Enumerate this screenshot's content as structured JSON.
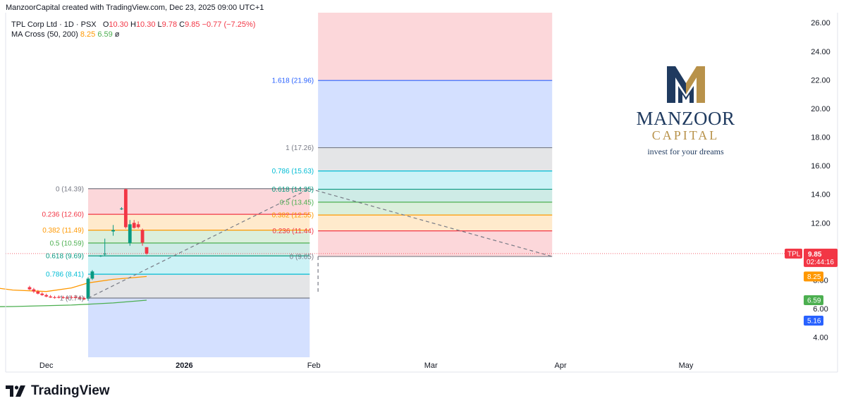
{
  "header": {
    "caption": "ManzoorCapital created with TradingView.com, Dec 23, 2025 09:00 UTC+1"
  },
  "legend": {
    "symbol": "TPL Corp Ltd · 1D · PSX",
    "open_label": "O",
    "open": "10.30",
    "high_label": "H",
    "high": "10.30",
    "low_label": "L",
    "low": "9.78",
    "close_label": "C",
    "close": "9.85",
    "change": "−0.77 (−7.25%)",
    "indicator": "MA Cross (50, 200)",
    "ma_fast": "8.25",
    "ma_slow": "6.59",
    "indicator_flag": "ø"
  },
  "watermark": {
    "name": "MANZOOR",
    "sub": "CAPITAL",
    "tagline": "invest for your dreams"
  },
  "branding": {
    "logo_text": "TradingView"
  },
  "colors": {
    "up": "#089981",
    "down": "#f23645",
    "ma_fast": "#ff9800",
    "ma_slow": "#4caf50",
    "badge_blue": "#2962ff",
    "brand_navy": "#1f3a5f",
    "brand_gold": "#b8924a"
  },
  "chart_data": {
    "type": "candlestick",
    "symbol": "TPL",
    "y_range": [
      2.6,
      26.7
    ],
    "y_ticks": [
      "4.00",
      "6.00",
      "8.00",
      "10.00",
      "12.00",
      "14.00",
      "16.00",
      "18.00",
      "20.00",
      "22.00",
      "24.00",
      "26.00"
    ],
    "x_ticks": [
      {
        "label": "Dec",
        "day": -24
      },
      {
        "label": "2026",
        "day": 9
      },
      {
        "label": "Feb",
        "day": 40
      },
      {
        "label": "Mar",
        "day": 68
      },
      {
        "label": "Apr",
        "day": 99
      },
      {
        "label": "May",
        "day": 129
      }
    ],
    "candles": [
      {
        "day": -28,
        "o": 7.5,
        "h": 7.6,
        "l": 7.3,
        "c": 7.35
      },
      {
        "day": -27,
        "o": 7.35,
        "h": 7.45,
        "l": 7.1,
        "c": 7.2
      },
      {
        "day": -26,
        "o": 7.2,
        "h": 7.3,
        "l": 7.0,
        "c": 7.05
      },
      {
        "day": -25,
        "o": 7.05,
        "h": 7.15,
        "l": 6.9,
        "c": 6.95
      },
      {
        "day": -24,
        "o": 6.95,
        "h": 7.05,
        "l": 6.8,
        "c": 6.85
      },
      {
        "day": -23,
        "o": 6.85,
        "h": 6.95,
        "l": 6.75,
        "c": 6.78
      },
      {
        "day": -22,
        "o": 6.8,
        "h": 6.9,
        "l": 6.7,
        "c": 6.75
      },
      {
        "day": -21,
        "o": 6.82,
        "h": 6.92,
        "l": 6.72,
        "c": 6.76
      },
      {
        "day": -20,
        "o": 6.8,
        "h": 6.9,
        "l": 6.7,
        "c": 6.74
      },
      {
        "day": -19,
        "o": 6.78,
        "h": 6.88,
        "l": 6.68,
        "c": 6.72
      },
      {
        "day": -18,
        "o": 6.8,
        "h": 6.92,
        "l": 6.7,
        "c": 6.75
      },
      {
        "day": -17,
        "o": 6.82,
        "h": 6.95,
        "l": 6.72,
        "c": 6.74
      },
      {
        "day": -16,
        "o": 6.8,
        "h": 6.9,
        "l": 6.65,
        "c": 6.7
      },
      {
        "day": -15,
        "o": 6.75,
        "h": 6.85,
        "l": 6.6,
        "c": 6.65
      },
      {
        "day": -14,
        "o": 6.7,
        "h": 8.2,
        "l": 6.55,
        "c": 8.1
      },
      {
        "day": -13,
        "o": 8.1,
        "h": 8.7,
        "l": 8.0,
        "c": 8.6
      },
      {
        "day": -11,
        "o": 9.68,
        "h": 9.74,
        "l": 9.62,
        "c": 9.7
      },
      {
        "day": -10,
        "o": 9.8,
        "h": 10.9,
        "l": 9.7,
        "c": 9.85
      },
      {
        "day": -8,
        "o": 11.4,
        "h": 11.85,
        "l": 11.1,
        "c": 11.5
      },
      {
        "day": -6,
        "o": 13.0,
        "h": 13.1,
        "l": 12.9,
        "c": 13.0
      },
      {
        "day": -5,
        "o": 14.35,
        "h": 14.39,
        "l": 11.6,
        "c": 11.7
      },
      {
        "day": -4,
        "o": 10.6,
        "h": 12.2,
        "l": 10.4,
        "c": 11.9
      },
      {
        "day": -3,
        "o": 12.0,
        "h": 12.2,
        "l": 11.6,
        "c": 11.65
      },
      {
        "day": -2,
        "o": 11.9,
        "h": 12.1,
        "l": 11.6,
        "c": 11.7
      },
      {
        "day": -1,
        "o": 11.5,
        "h": 11.6,
        "l": 10.4,
        "c": 10.62
      },
      {
        "day": 0,
        "o": 10.3,
        "h": 10.3,
        "l": 9.78,
        "c": 9.85
      }
    ],
    "ma_fast": {
      "name": "MA 50",
      "points": [
        [
          -48,
          8.0
        ],
        [
          -40,
          7.6
        ],
        [
          -32,
          7.3
        ],
        [
          -24,
          7.2
        ],
        [
          -18,
          7.45
        ],
        [
          -14,
          7.8
        ],
        [
          -8,
          8.05
        ],
        [
          0,
          8.25
        ]
      ]
    },
    "ma_slow": {
      "name": "MA 200",
      "points": [
        [
          -48,
          6.1
        ],
        [
          -32,
          6.15
        ],
        [
          -18,
          6.25
        ],
        [
          -8,
          6.4
        ],
        [
          0,
          6.59
        ]
      ]
    },
    "fib_retracement": {
      "start_day": -14,
      "end_day": 39,
      "anchor_low": 6.74,
      "anchor_high": 14.39,
      "levels": [
        {
          "label": "0 (14.39)",
          "value": 14.39,
          "color": "#787b86"
        },
        {
          "label": "0.236 (12.60)",
          "value": 12.6,
          "color": "#f23645"
        },
        {
          "label": "0.382 (11.49)",
          "value": 11.49,
          "color": "#ff9800"
        },
        {
          "label": "0.5 (10.59)",
          "value": 10.59,
          "color": "#4caf50"
        },
        {
          "label": "0.618 (9.69)",
          "value": 9.69,
          "color": "#089981"
        },
        {
          "label": "0.786 (8.41)",
          "value": 8.41,
          "color": "#00bcd4"
        },
        {
          "label": "1 (6.74)",
          "value": 6.74,
          "color": "#787b86"
        }
      ],
      "zones": [
        {
          "from": 14.39,
          "to": 12.6,
          "fill": "#f23645",
          "opacity": 0.2
        },
        {
          "from": 12.6,
          "to": 11.49,
          "fill": "#ff9800",
          "opacity": 0.2
        },
        {
          "from": 11.49,
          "to": 10.59,
          "fill": "#4caf50",
          "opacity": 0.2
        },
        {
          "from": 10.59,
          "to": 9.69,
          "fill": "#089981",
          "opacity": 0.2
        },
        {
          "from": 9.69,
          "to": 8.41,
          "fill": "#00bcd4",
          "opacity": 0.2
        },
        {
          "from": 8.41,
          "to": 6.74,
          "fill": "#787b86",
          "opacity": 0.2
        },
        {
          "from": 6.74,
          "to": 2.6,
          "fill": "#2962ff",
          "opacity": 0.2
        }
      ]
    },
    "fib_extension": {
      "start_day": 41,
      "end_day": 97,
      "anchor_low": 9.65,
      "anchor_high": 17.26,
      "levels": [
        {
          "label": "1.618 (21.96)",
          "value": 21.96,
          "color": "#2962ff"
        },
        {
          "label": "1 (17.26)",
          "value": 17.26,
          "color": "#787b86"
        },
        {
          "label": "0.786 (15.63)",
          "value": 15.63,
          "color": "#00bcd4"
        },
        {
          "label": "0.618 (14.35)",
          "value": 14.35,
          "color": "#089981"
        },
        {
          "label": "0.5 (13.45)",
          "value": 13.45,
          "color": "#4caf50"
        },
        {
          "label": "0.382 (12.55)",
          "value": 12.55,
          "color": "#ff9800"
        },
        {
          "label": "0.236 (11.44)",
          "value": 11.44,
          "color": "#f23645"
        },
        {
          "label": "0 (9.65)",
          "value": 9.65,
          "color": "#787b86"
        }
      ],
      "zones": [
        {
          "from": 26.7,
          "to": 21.96,
          "fill": "#f23645",
          "opacity": 0.2
        },
        {
          "from": 21.96,
          "to": 17.26,
          "fill": "#2962ff",
          "opacity": 0.2
        },
        {
          "from": 17.26,
          "to": 15.63,
          "fill": "#787b86",
          "opacity": 0.2
        },
        {
          "from": 15.63,
          "to": 14.35,
          "fill": "#00bcd4",
          "opacity": 0.2
        },
        {
          "from": 14.35,
          "to": 13.45,
          "fill": "#089981",
          "opacity": 0.2
        },
        {
          "from": 13.45,
          "to": 12.55,
          "fill": "#4caf50",
          "opacity": 0.2
        },
        {
          "from": 12.55,
          "to": 11.44,
          "fill": "#ff9800",
          "opacity": 0.2
        },
        {
          "from": 11.44,
          "to": 9.65,
          "fill": "#f23645",
          "opacity": 0.2
        }
      ]
    },
    "trend_lines": [
      {
        "from": [
          -14,
          6.74
        ],
        "to": [
          39,
          14.39
        ]
      },
      {
        "from": [
          39,
          14.39
        ],
        "to": [
          97,
          9.65
        ]
      }
    ],
    "vertical_marker": {
      "day": 41,
      "from": 9.65,
      "to": 7.1
    },
    "price_badges": [
      {
        "text": "9.85",
        "sub": "02:44:16",
        "tag": "TPL",
        "value": 9.85,
        "color": "#f23645"
      },
      {
        "text": "8.25",
        "value": 8.25,
        "color": "#ff9800"
      },
      {
        "text": "6.59",
        "value": 6.59,
        "color": "#4caf50"
      },
      {
        "text": "5.16",
        "value": 5.16,
        "color": "#2962ff"
      }
    ]
  }
}
